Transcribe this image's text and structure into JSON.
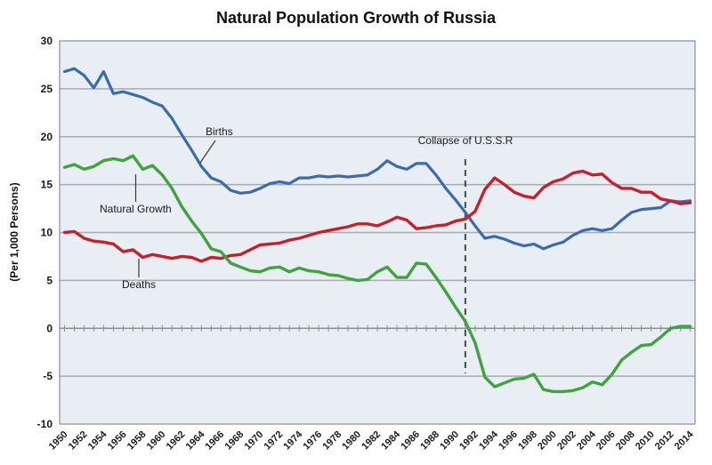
{
  "chart_data": {
    "type": "line",
    "title": "Natural Population Growth of Russia",
    "ylabel": "(Per 1,000 Persons)",
    "xlabel": "",
    "ylim": [
      -10,
      30
    ],
    "grid": true,
    "legend_position": "inline-annotations",
    "x": [
      1950,
      1951,
      1952,
      1953,
      1954,
      1955,
      1956,
      1957,
      1958,
      1959,
      1960,
      1961,
      1962,
      1963,
      1964,
      1965,
      1966,
      1967,
      1968,
      1969,
      1970,
      1971,
      1972,
      1973,
      1974,
      1975,
      1976,
      1977,
      1978,
      1979,
      1980,
      1981,
      1982,
      1983,
      1984,
      1985,
      1986,
      1987,
      1988,
      1989,
      1990,
      1991,
      1992,
      1993,
      1994,
      1995,
      1996,
      1997,
      1998,
      1999,
      2000,
      2001,
      2002,
      2003,
      2004,
      2005,
      2006,
      2007,
      2008,
      2009,
      2010,
      2011,
      2012,
      2013,
      2014
    ],
    "series": [
      {
        "name": "Births",
        "color": "#3A6BAC",
        "values": [
          26.8,
          27.1,
          26.4,
          25.1,
          26.8,
          24.5,
          24.7,
          24.4,
          24.1,
          23.6,
          23.2,
          21.9,
          20.2,
          18.6,
          16.9,
          15.7,
          15.3,
          14.4,
          14.1,
          14.2,
          14.6,
          15.1,
          15.3,
          15.1,
          15.7,
          15.7,
          15.9,
          15.8,
          15.9,
          15.8,
          15.9,
          16.0,
          16.6,
          17.5,
          16.9,
          16.6,
          17.2,
          17.2,
          16.0,
          14.6,
          13.4,
          12.1,
          10.7,
          9.4,
          9.6,
          9.3,
          8.9,
          8.6,
          8.8,
          8.3,
          8.7,
          9.0,
          9.7,
          10.2,
          10.4,
          10.2,
          10.4,
          11.3,
          12.1,
          12.4,
          12.5,
          12.6,
          13.3,
          13.2,
          13.3
        ]
      },
      {
        "name": "Deaths",
        "color": "#C8202A",
        "values": [
          10.0,
          10.1,
          9.4,
          9.1,
          9.0,
          8.8,
          8.0,
          8.2,
          7.4,
          7.7,
          7.5,
          7.3,
          7.5,
          7.4,
          7.0,
          7.4,
          7.3,
          7.6,
          7.7,
          8.2,
          8.7,
          8.8,
          8.9,
          9.2,
          9.4,
          9.7,
          10.0,
          10.2,
          10.4,
          10.6,
          10.9,
          10.9,
          10.7,
          11.1,
          11.6,
          11.3,
          10.4,
          10.5,
          10.7,
          10.8,
          11.2,
          11.4,
          12.2,
          14.5,
          15.7,
          15.0,
          14.2,
          13.8,
          13.6,
          14.7,
          15.3,
          15.6,
          16.2,
          16.4,
          16.0,
          16.1,
          15.2,
          14.6,
          14.6,
          14.2,
          14.2,
          13.5,
          13.3,
          13.0,
          13.1
        ]
      },
      {
        "name": "Natural Growth",
        "color": "#3FA43D",
        "values": [
          16.8,
          17.1,
          16.6,
          16.9,
          17.5,
          17.7,
          17.5,
          18.0,
          16.6,
          17.0,
          16.0,
          14.6,
          12.7,
          11.2,
          9.9,
          8.3,
          8.0,
          6.8,
          6.4,
          6.0,
          5.9,
          6.3,
          6.4,
          5.9,
          6.3,
          6.0,
          5.9,
          5.6,
          5.5,
          5.2,
          5.0,
          5.1,
          5.9,
          6.4,
          5.3,
          5.3,
          6.8,
          6.7,
          5.3,
          3.8,
          2.2,
          0.7,
          -1.5,
          -5.1,
          -6.1,
          -5.7,
          -5.3,
          -5.2,
          -4.8,
          -6.4,
          -6.6,
          -6.6,
          -6.5,
          -6.2,
          -5.6,
          -5.9,
          -4.8,
          -3.3,
          -2.5,
          -1.8,
          -1.7,
          -0.9,
          0.0,
          0.2,
          0.2
        ]
      }
    ],
    "y_ticks": [
      30,
      25,
      20,
      15,
      10,
      5,
      0,
      -5,
      -10
    ],
    "x_tick_labels": [
      "1950",
      "1952",
      "1954",
      "1956",
      "1958",
      "1960",
      "1962",
      "1964",
      "1966",
      "1968",
      "1970",
      "1972",
      "1974",
      "1976",
      "1978",
      "1980",
      "1982",
      "1984",
      "1986",
      "1988",
      "1990",
      "1992",
      "1994",
      "1996",
      "1998",
      "2000",
      "2002",
      "2004",
      "2006",
      "2008",
      "2010",
      "2012",
      "2014"
    ],
    "annotations": {
      "births": {
        "label": "Births",
        "anchor_year": 1963
      },
      "natural_growth": {
        "label": "Natural Growth",
        "anchor_year": 1957
      },
      "deaths": {
        "label": "Deaths",
        "anchor_year": 1958
      },
      "collapse": {
        "label": "Collapse of U.S.S.R",
        "year": 1991
      }
    },
    "colors": {
      "plot_background": "#E9EDF4",
      "gridline": "#A6ABB0",
      "axis": "#8A9096",
      "dashed_line": "#4A4A4A",
      "text": "#1A1A1A"
    }
  }
}
